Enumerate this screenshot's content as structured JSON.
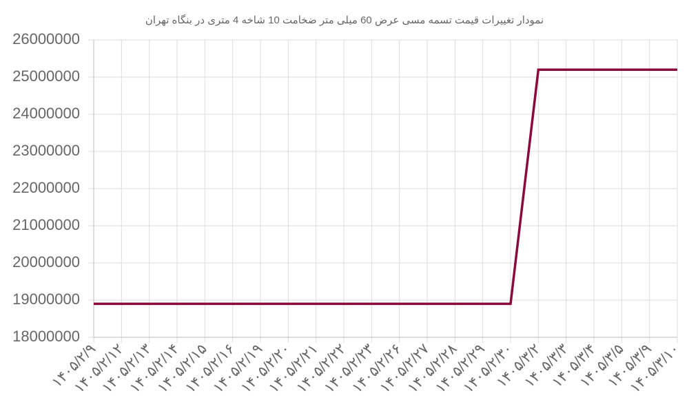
{
  "chart_data": {
    "type": "line",
    "title": "نمودار تغییرات قیمت تسمه مسی عرض 60 میلی متر ضخامت 10 شاخه 4 متری در بنگاه تهران",
    "categories": [
      "۱۴۰۵/۲/۹",
      "۱۴۰۵/۲/۱۲",
      "۱۴۰۵/۲/۱۳",
      "۱۴۰۵/۲/۱۴",
      "۱۴۰۵/۲/۱۵",
      "۱۴۰۵/۲/۱۶",
      "۱۴۰۵/۲/۱۹",
      "۱۴۰۵/۲/۲۰",
      "۱۴۰۵/۲/۲۱",
      "۱۴۰۵/۲/۲۲",
      "۱۴۰۵/۲/۲۳",
      "۱۴۰۵/۲/۲۶",
      "۱۴۰۵/۲/۲۷",
      "۱۴۰۵/۲/۲۸",
      "۱۴۰۵/۲/۲۹",
      "۱۴۰۵/۲/۳۰",
      "۱۴۰۵/۳/۲",
      "۱۴۰۵/۳/۳",
      "۱۴۰۵/۳/۴",
      "۱۴۰۵/۳/۵",
      "۱۴۰۵/۳/۹",
      "۱۴۰۵/۳/۱۰"
    ],
    "values": [
      18900000,
      18900000,
      18900000,
      18900000,
      18900000,
      18900000,
      18900000,
      18900000,
      18900000,
      18900000,
      18900000,
      18900000,
      18900000,
      18900000,
      18900000,
      18900000,
      25200000,
      25200000,
      25200000,
      25200000,
      25200000,
      25200000
    ],
    "color": "#8a0a3c",
    "ylim": [
      18000000,
      26000000
    ],
    "yticks": [
      18000000,
      19000000,
      20000000,
      21000000,
      22000000,
      23000000,
      24000000,
      25000000,
      26000000
    ],
    "grid": true
  }
}
